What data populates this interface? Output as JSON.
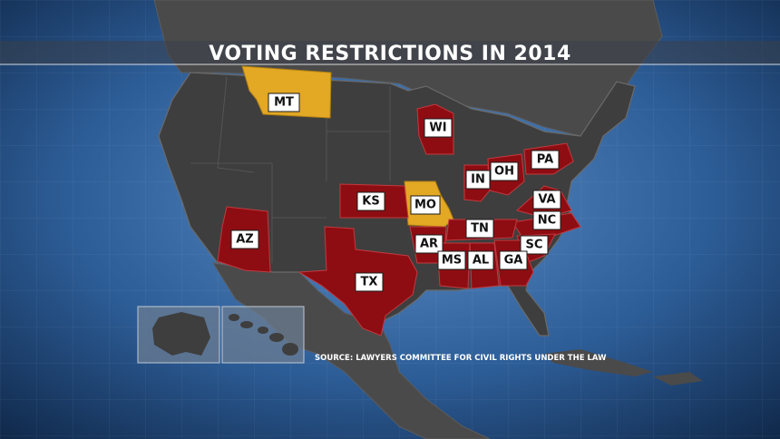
{
  "title": "VOTING RESTRICTIONS IN 2014",
  "source": "SOURCE: LAWYERS COMMITTEE FOR CIVIL RIGHTS UNDER THE LAW",
  "colors": {
    "restricted_red": "#8e0d12",
    "restricted_gold": "#e3a824",
    "other_states": "#3e3e3e",
    "ocean": "#2a5a92",
    "land_outside": "#4a4a4a"
  },
  "states": {
    "MT": "MT",
    "WI": "WI",
    "PA": "PA",
    "OH": "OH",
    "IN": "IN",
    "KS": "KS",
    "MO": "MO",
    "VA": "VA",
    "NC": "NC",
    "TN": "TN",
    "AZ": "AZ",
    "AR": "AR",
    "SC": "SC",
    "MS": "MS",
    "AL": "AL",
    "GA": "GA",
    "TX": "TX"
  }
}
